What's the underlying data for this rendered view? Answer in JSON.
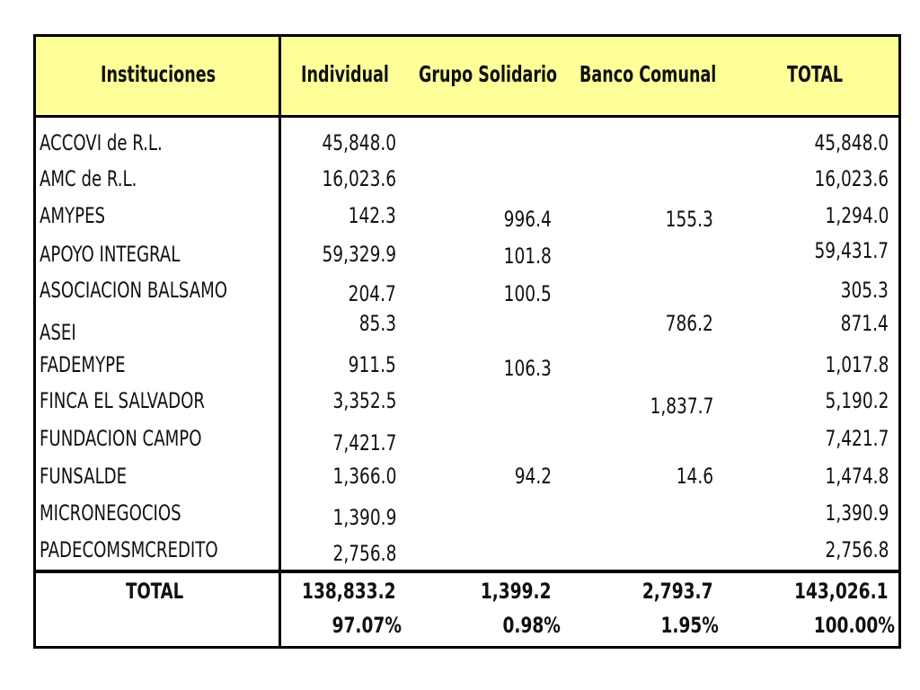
{
  "headers": [
    "Instituciones",
    "Individual",
    "Grupo Solidario",
    "Banco Comunal",
    "TOTAL"
  ],
  "rows": [
    {
      "name": "ACCOVI de R.L.",
      "individual": "45,848.0",
      "grupo": "",
      "banco": "",
      "total": "45,848.0"
    },
    {
      "name": "AMC de R.L.",
      "individual": "16,023.6",
      "grupo": "",
      "banco": "",
      "total": "16,023.6"
    },
    {
      "name": "AMYPES",
      "individual": "142.3",
      "grupo": "996.4",
      "banco": "155.3",
      "total": "1,294.0"
    },
    {
      "name": "APOYO INTEGRAL",
      "individual": "59,329.9",
      "grupo": "101.8",
      "banco": "",
      "total": "59,431.7"
    },
    {
      "name": "ASOCIACION BALSAMO",
      "individual": "204.7",
      "grupo": "100.5",
      "banco": "",
      "total": "305.3"
    },
    {
      "name": "ASEI",
      "individual": "85.3",
      "grupo": "",
      "banco": "786.2",
      "total": "871.4"
    },
    {
      "name": "FADEMYPE",
      "individual": "911.5",
      "grupo": "106.3",
      "banco": "",
      "total": "1,017.8"
    },
    {
      "name": "FINCA EL SALVADOR",
      "individual": "3,352.5",
      "grupo": "",
      "banco": "1,837.7",
      "total": "5,190.2"
    },
    {
      "name": "FUNDACION CAMPO",
      "individual": "7,421.7",
      "grupo": "",
      "banco": "",
      "total": "7,421.7"
    },
    {
      "name": "FUNSALDE",
      "individual": "1,366.0",
      "grupo": "94.2",
      "banco": "14.6",
      "total": "1,474.8"
    },
    {
      "name": "MICRONEGOCIOS",
      "individual": "1,390.9",
      "grupo": "",
      "banco": "",
      "total": "1,390.9"
    },
    {
      "name": "PADECOMSMCREDITO",
      "individual": "2,756.8",
      "grupo": "",
      "banco": "",
      "total": "2,756.8"
    }
  ],
  "total": {
    "label": "TOTAL",
    "individual": "138,833.2",
    "grupo": "1,399.2",
    "banco": "2,793.7",
    "total": "143,026.1"
  },
  "percentages": {
    "individual": "97.07%",
    "grupo": "0.98%",
    "banco": "1.95%",
    "total": "100.00%"
  },
  "colors": {
    "header_bg": "#ffff99",
    "border": "#000000"
  }
}
